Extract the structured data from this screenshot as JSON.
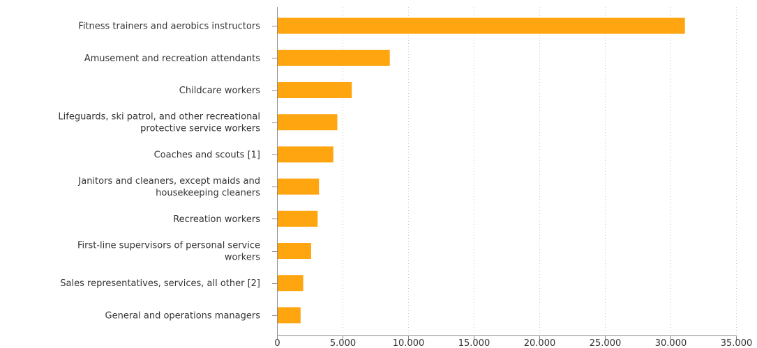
{
  "chart_data": {
    "type": "bar",
    "orientation": "horizontal",
    "categories": [
      [
        "Fitness trainers and aerobics instructors"
      ],
      [
        "Amusement and recreation attendants"
      ],
      [
        "Childcare workers"
      ],
      [
        "Lifeguards, ski patrol, and other recreational",
        "protective service workers"
      ],
      [
        "Coaches and scouts [1]"
      ],
      [
        "Janitors and cleaners, except maids and",
        "housekeeping cleaners"
      ],
      [
        "Recreation workers"
      ],
      [
        "First-line supervisors of personal service",
        "workers"
      ],
      [
        "Sales representatives, services, all other [2]"
      ],
      [
        "General and operations managers"
      ]
    ],
    "values": [
      31100,
      8600,
      5700,
      4600,
      4300,
      3200,
      3100,
      2600,
      2000,
      1800
    ],
    "xlim": [
      0,
      35000
    ],
    "xticks": [
      0,
      5000,
      10000,
      15000,
      20000,
      25000,
      30000,
      35000
    ],
    "xtick_labels": [
      "0",
      "5.000",
      "10.000",
      "15.000",
      "20.000",
      "25.000",
      "30.000",
      "35.000"
    ],
    "grid": "vertical dotted",
    "bar_color": "#ffa50f",
    "title": "",
    "xlabel": "",
    "ylabel": ""
  }
}
